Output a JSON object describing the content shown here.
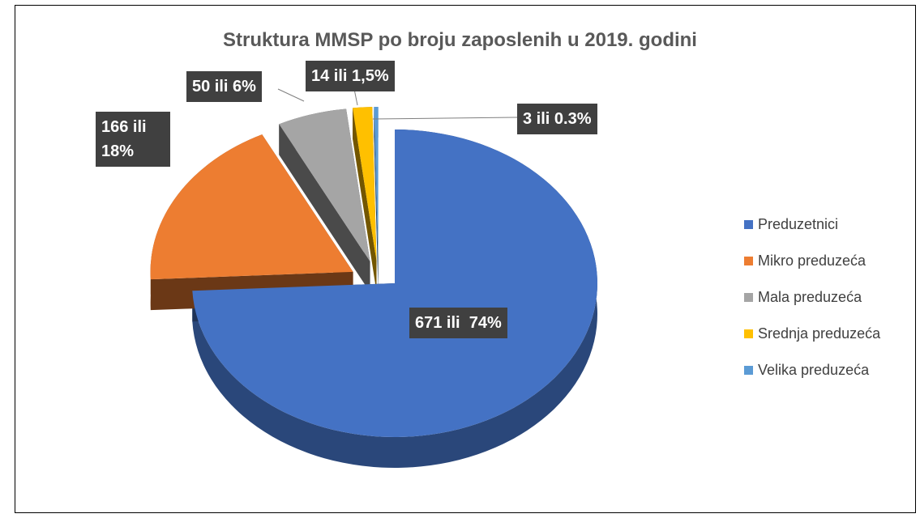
{
  "chart_data": {
    "type": "pie",
    "title": "Struktura MMSP po broju zaposlenih u 2019. godini",
    "categories": [
      "Preduzetnici",
      "Mikro preduzeća",
      "Mala preduzeća",
      "Srednja preduzeća",
      "Velika preduzeća"
    ],
    "values": [
      671,
      166,
      50,
      14,
      3
    ],
    "value_labels": [
      "671 ili  74%",
      "166 ili 18%",
      "50 ili 6%",
      "14 ili 1,5%",
      "3 ili 0.3%"
    ],
    "colors": [
      "#4472c4",
      "#ed7d31",
      "#a5a5a5",
      "#ffc000",
      "#5b9bd5"
    ],
    "legend": "right"
  }
}
